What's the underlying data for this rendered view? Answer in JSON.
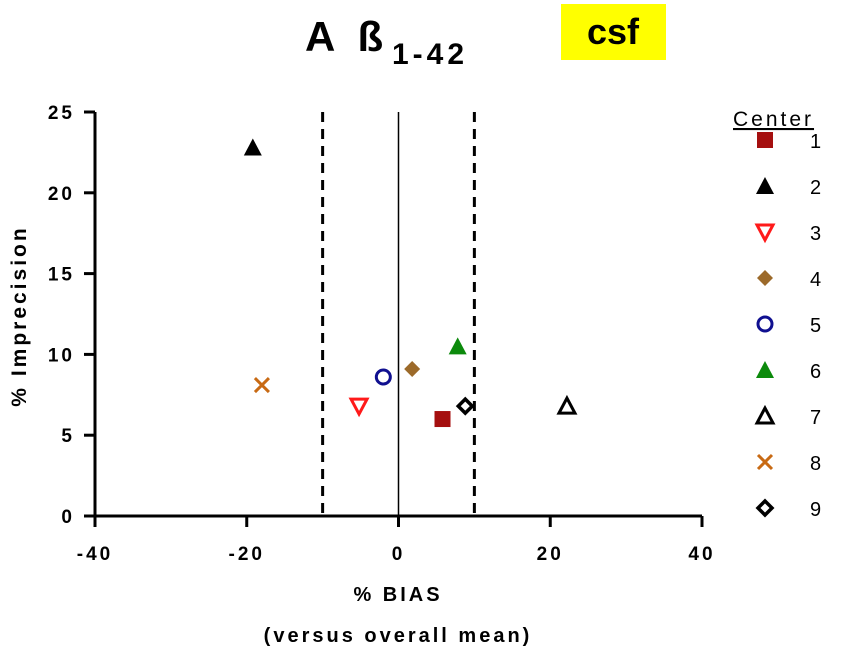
{
  "chart_data": {
    "type": "scatter",
    "title": "A ß",
    "title_subscript": "1-42",
    "badge": "csf",
    "badge_color": "#ffff00",
    "badge_text_color": "#1c0f9e",
    "xlabel": "% BIAS",
    "xlabel_line2": "(versus overall mean)",
    "ylabel": "% Imprecision",
    "xlim": [
      -40,
      40
    ],
    "ylim": [
      0,
      25
    ],
    "x_ticks": [
      "-40",
      "-20",
      "0",
      "20",
      "40"
    ],
    "x_tick_values": [
      -40,
      -20,
      0,
      20,
      40
    ],
    "y_ticks": [
      "0",
      "5",
      "10",
      "15",
      "20",
      "25"
    ],
    "y_tick_values": [
      0,
      5,
      10,
      15,
      20,
      25
    ],
    "reference_lines": [
      {
        "x": -10,
        "style": "dashed"
      },
      {
        "x": 0,
        "style": "solid"
      },
      {
        "x": 10,
        "style": "dashed"
      }
    ],
    "grid": false,
    "legend_title": "Center",
    "legend_position": "right",
    "series": [
      {
        "name": "1",
        "marker": "square-filled",
        "color": "#a50f0f",
        "x": 5.8,
        "y": 6.0
      },
      {
        "name": "2",
        "marker": "triangle-filled",
        "color": "#000000",
        "x": -19.2,
        "y": 22.8
      },
      {
        "name": "3",
        "marker": "triangle-down-open",
        "color": "#ff1a1a",
        "x": -5.2,
        "y": 6.8
      },
      {
        "name": "4",
        "marker": "diamond-filled",
        "color": "#9c6a2a",
        "x": 1.8,
        "y": 9.1
      },
      {
        "name": "5",
        "marker": "circle-open",
        "color": "#101090",
        "x": -2.0,
        "y": 8.6
      },
      {
        "name": "6",
        "marker": "triangle-filled",
        "color": "#0c8a0c",
        "x": 7.8,
        "y": 10.5
      },
      {
        "name": "7",
        "marker": "triangle-open",
        "color": "#000000",
        "x": 22.2,
        "y": 6.8
      },
      {
        "name": "8",
        "marker": "cross",
        "color": "#c86a14",
        "x": -18.0,
        "y": 8.1
      },
      {
        "name": "9",
        "marker": "diamond-open",
        "color": "#000000",
        "x": 8.8,
        "y": 6.8
      }
    ]
  }
}
